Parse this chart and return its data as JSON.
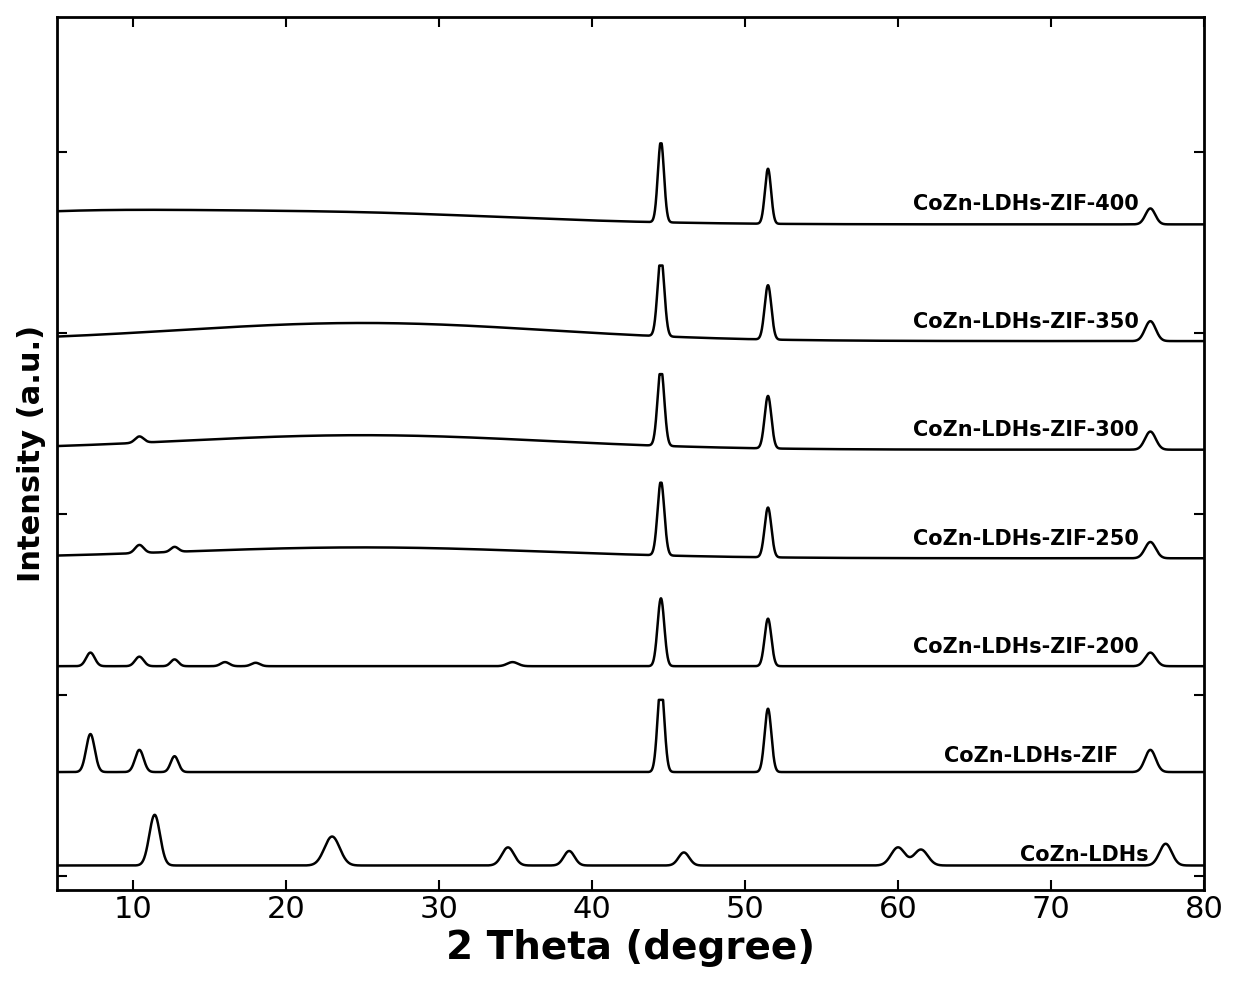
{
  "xlabel": "2 Theta (degree)",
  "ylabel": "Intensity (a.u.)",
  "xlim": [
    5,
    80
  ],
  "xticks": [
    10,
    20,
    30,
    40,
    50,
    60,
    70,
    80
  ],
  "background_color": "#ffffff",
  "line_color": "#000000",
  "labels": [
    "CoZn-LDHs",
    "CoZn-LDHs-ZIF",
    "CoZn-LDHs-ZIF-200",
    "CoZn-LDHs-ZIF-250",
    "CoZn-LDHs-ZIF-300",
    "CoZn-LDHs-ZIF-350",
    "CoZn-LDHs-ZIF-400"
  ],
  "offsets": [
    0.0,
    1.1,
    2.3,
    3.5,
    4.7,
    5.9,
    7.2
  ],
  "xlabel_fontsize": 28,
  "ylabel_fontsize": 22,
  "tick_fontsize": 22,
  "label_fontsize": 15,
  "linewidth": 1.8
}
